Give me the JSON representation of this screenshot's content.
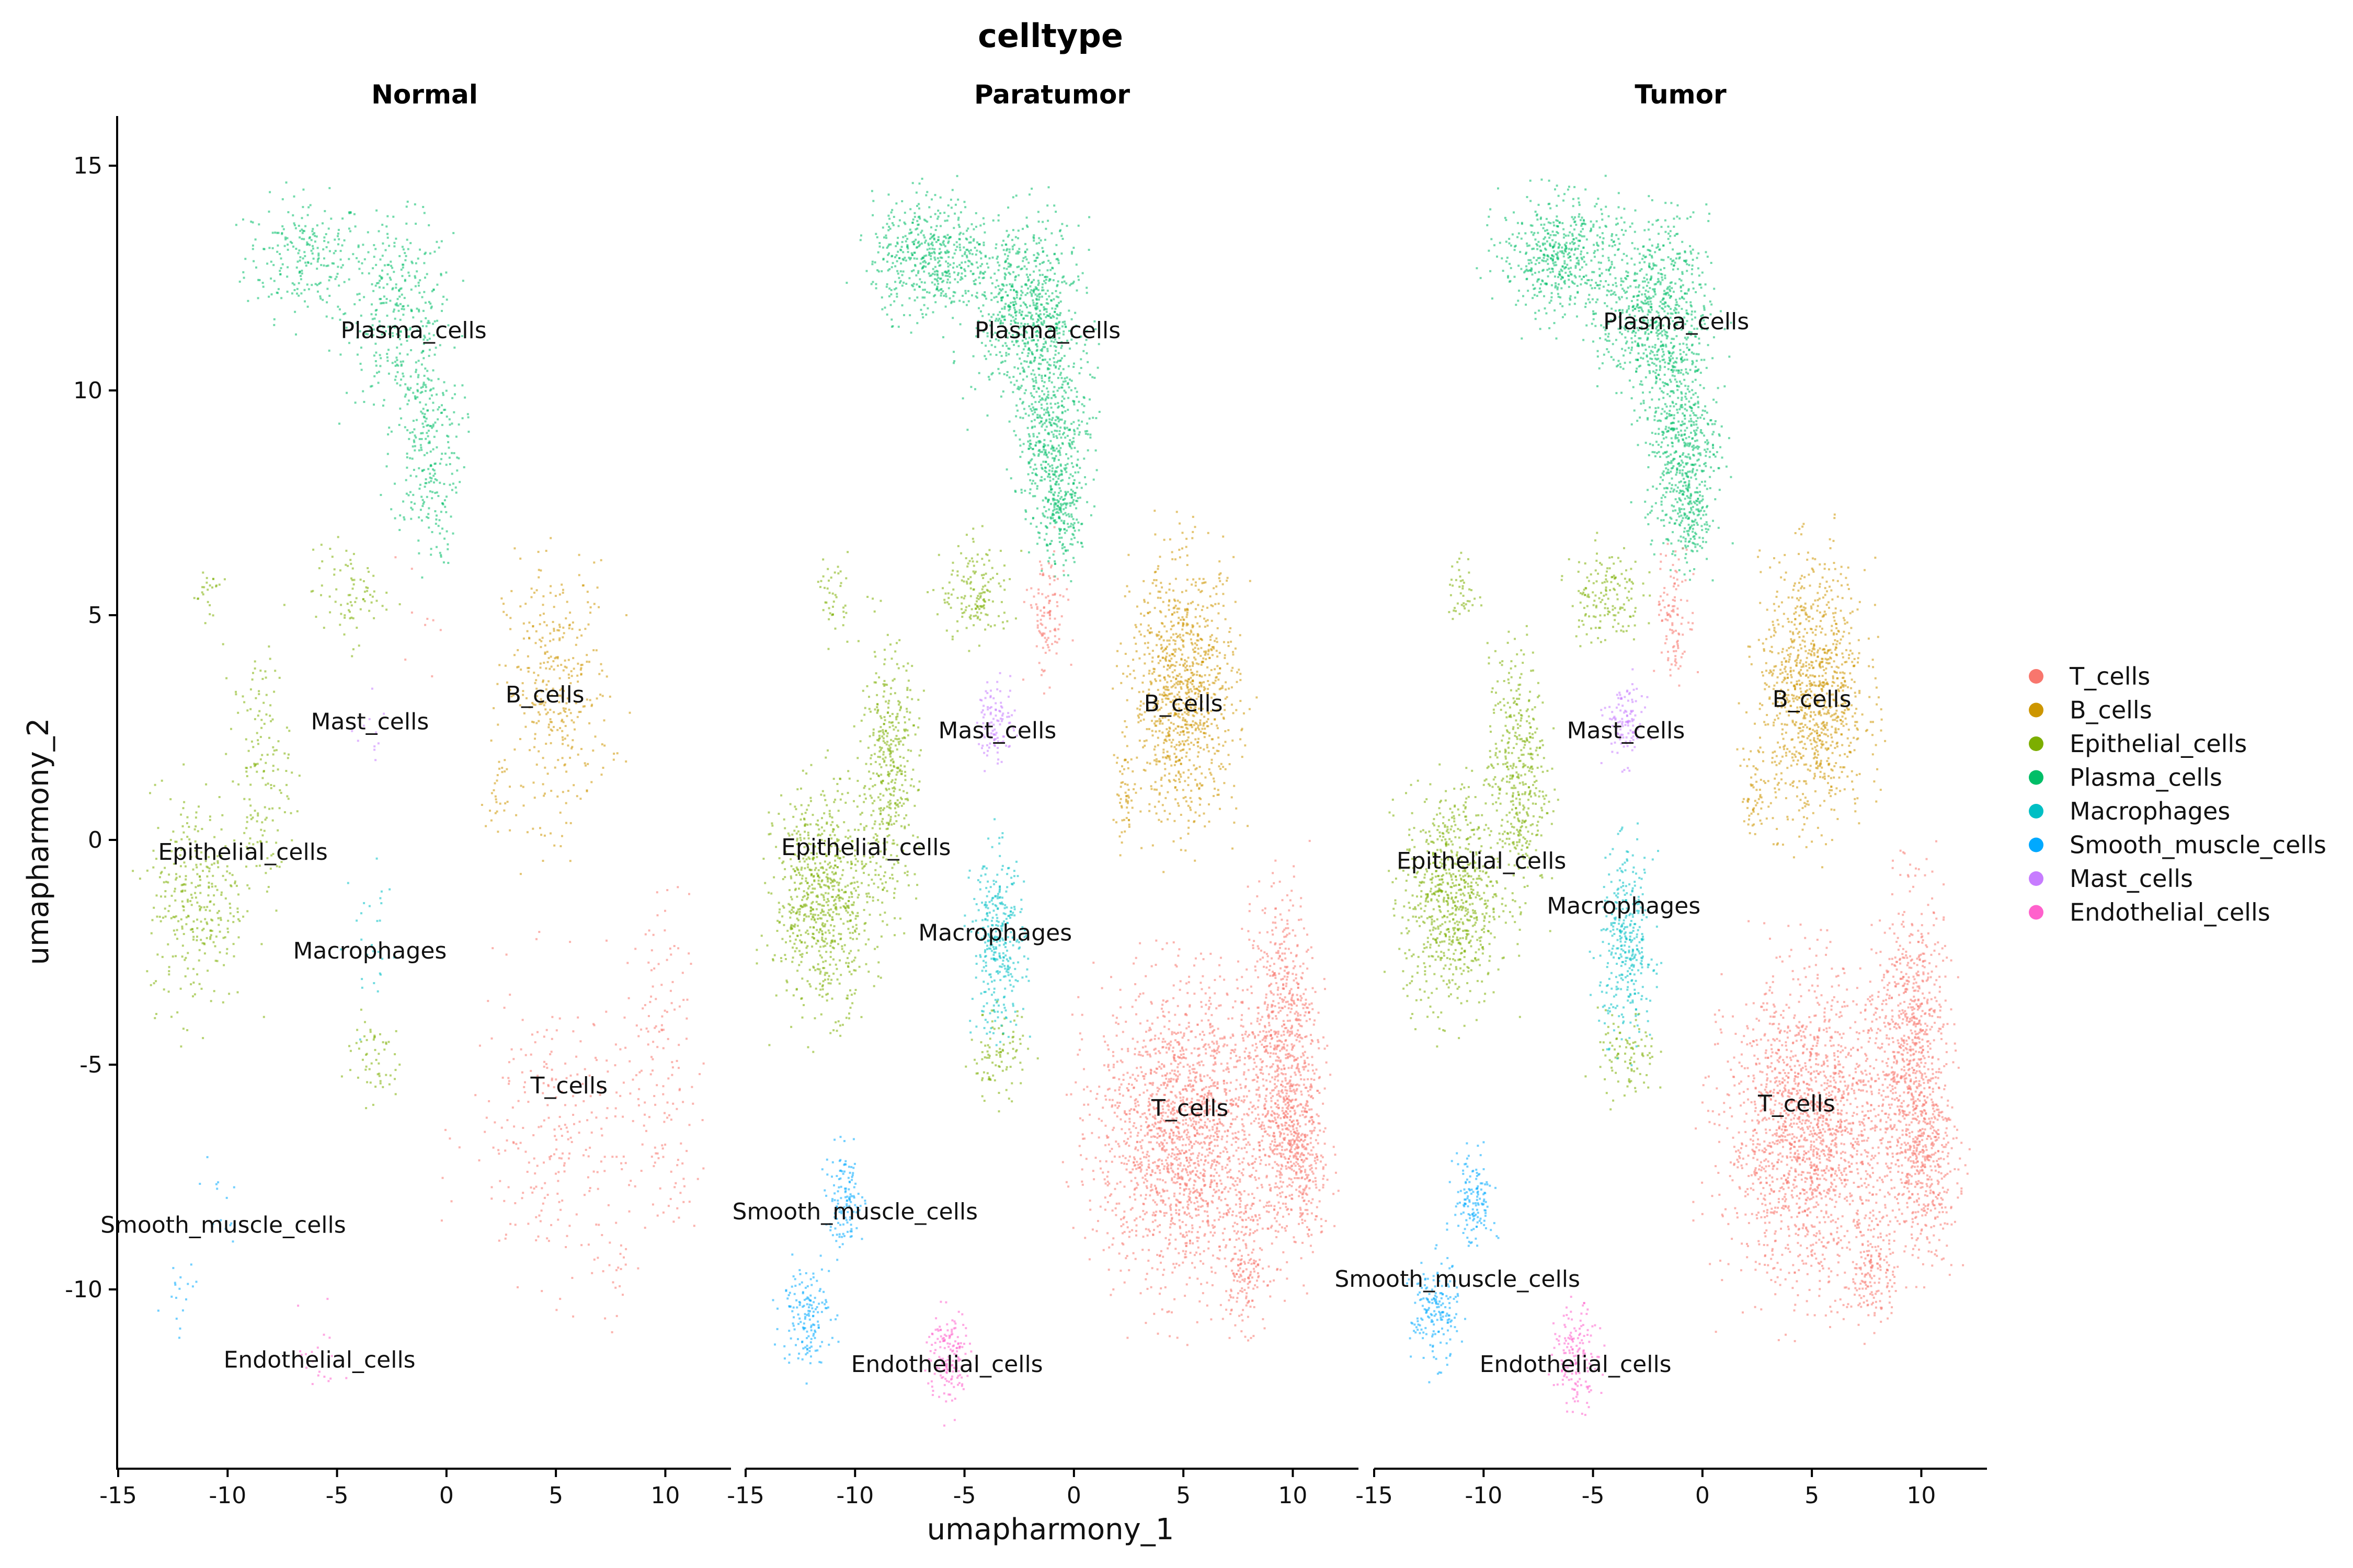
{
  "chart_data": {
    "type": "scatter",
    "title": "celltype",
    "xlabel": "umapharmony_1",
    "ylabel": "umapharmony_2",
    "xlim": [
      -15,
      13
    ],
    "ylim": [
      -14,
      16
    ],
    "x_ticks": [
      "-15",
      "-10",
      "-5",
      "0",
      "5",
      "10"
    ],
    "y_ticks": [
      "15",
      "10",
      "5",
      "0",
      "-5",
      "-10"
    ],
    "grid": false,
    "legend_position": "right",
    "panels": [
      {
        "name": "Normal",
        "labels": [
          {
            "text": "Plasma_cells",
            "x": -1.5,
            "y": 11.3
          },
          {
            "text": "B_cells",
            "x": 4.5,
            "y": 3.2
          },
          {
            "text": "Mast_cells",
            "x": -3.5,
            "y": 2.6
          },
          {
            "text": "Epithelial_cells",
            "x": -9.3,
            "y": -0.3
          },
          {
            "text": "Macrophages",
            "x": -3.5,
            "y": -2.5
          },
          {
            "text": "T_cells",
            "x": 5.6,
            "y": -5.5
          },
          {
            "text": "Smooth_muscle_cells",
            "x": -10.2,
            "y": -8.6
          },
          {
            "text": "Endothelial_cells",
            "x": -5.8,
            "y": -11.6
          }
        ]
      },
      {
        "name": "Paratumor",
        "labels": [
          {
            "text": "Plasma_cells",
            "x": -1.2,
            "y": 11.3
          },
          {
            "text": "B_cells",
            "x": 5.0,
            "y": 3.0
          },
          {
            "text": "Mast_cells",
            "x": -3.5,
            "y": 2.4
          },
          {
            "text": "Epithelial_cells",
            "x": -9.5,
            "y": -0.2
          },
          {
            "text": "Macrophages",
            "x": -3.6,
            "y": -2.1
          },
          {
            "text": "T_cells",
            "x": 5.3,
            "y": -6.0
          },
          {
            "text": "Smooth_muscle_cells",
            "x": -10.0,
            "y": -8.3
          },
          {
            "text": "Endothelial_cells",
            "x": -5.8,
            "y": -11.7
          }
        ]
      },
      {
        "name": "Tumor",
        "labels": [
          {
            "text": "Plasma_cells",
            "x": -1.2,
            "y": 11.5
          },
          {
            "text": "B_cells",
            "x": 5.0,
            "y": 3.1
          },
          {
            "text": "Mast_cells",
            "x": -3.5,
            "y": 2.4
          },
          {
            "text": "Epithelial_cells",
            "x": -10.1,
            "y": -0.5
          },
          {
            "text": "Macrophages",
            "x": -3.6,
            "y": -1.5
          },
          {
            "text": "T_cells",
            "x": 4.3,
            "y": -5.9
          },
          {
            "text": "Smooth_muscle_cells",
            "x": -11.2,
            "y": -9.8
          },
          {
            "text": "Endothelial_cells",
            "x": -5.8,
            "y": -11.7
          }
        ]
      }
    ],
    "series": [
      {
        "name": "T_cells",
        "color": "#F8766D"
      },
      {
        "name": "B_cells",
        "color": "#CD9600"
      },
      {
        "name": "Epithelial_cells",
        "color": "#7CAE00"
      },
      {
        "name": "Plasma_cells",
        "color": "#00BE67"
      },
      {
        "name": "Macrophages",
        "color": "#00BFC4"
      },
      {
        "name": "Smooth_muscle_cells",
        "color": "#00A9FF"
      },
      {
        "name": "Mast_cells",
        "color": "#C77CFF"
      },
      {
        "name": "Endothelial_cells",
        "color": "#FF61CC"
      }
    ],
    "clusters": [
      {
        "series": "Plasma_cells",
        "cx": -6.5,
        "cy": 13.0,
        "rx": 2.5,
        "ry": 1.2,
        "density": [
          0.45,
          1.0,
          1.0
        ]
      },
      {
        "series": "Plasma_cells",
        "cx": -2.2,
        "cy": 11.8,
        "rx": 2.2,
        "ry": 1.8,
        "density": [
          0.45,
          1.0,
          1.0
        ]
      },
      {
        "series": "Plasma_cells",
        "cx": -1.0,
        "cy": 9.0,
        "rx": 1.5,
        "ry": 2.0,
        "density": [
          0.45,
          1.0,
          1.0
        ]
      },
      {
        "series": "Plasma_cells",
        "cx": -0.7,
        "cy": 7.2,
        "rx": 0.9,
        "ry": 1.0,
        "density": [
          0.3,
          1.0,
          1.0
        ]
      },
      {
        "series": "B_cells",
        "cx": 5.0,
        "cy": 3.3,
        "rx": 2.2,
        "ry": 2.6,
        "density": [
          0.35,
          1.0,
          1.0
        ]
      },
      {
        "series": "B_cells",
        "cx": 2.3,
        "cy": 1.0,
        "rx": 0.5,
        "ry": 1.0,
        "density": [
          0.3,
          0.6,
          0.6
        ]
      },
      {
        "series": "T_cells",
        "cx": 5.0,
        "cy": -6.5,
        "rx": 3.6,
        "ry": 3.0,
        "density": [
          0.14,
          1.0,
          1.0
        ]
      },
      {
        "series": "T_cells",
        "cx": 9.5,
        "cy": -4.5,
        "rx": 1.4,
        "ry": 3.0,
        "density": [
          0.14,
          1.0,
          1.0
        ]
      },
      {
        "series": "T_cells",
        "cx": 10.2,
        "cy": -7.2,
        "rx": 1.3,
        "ry": 1.8,
        "density": [
          0.1,
          0.9,
          0.9
        ]
      },
      {
        "series": "T_cells",
        "cx": 7.8,
        "cy": -9.5,
        "rx": 0.9,
        "ry": 1.2,
        "density": [
          0.1,
          0.8,
          0.8
        ]
      },
      {
        "series": "T_cells",
        "cx": -1.3,
        "cy": 5.0,
        "rx": 0.8,
        "ry": 1.3,
        "density": [
          0.05,
          0.6,
          0.6
        ]
      },
      {
        "series": "Epithelial_cells",
        "cx": -11.5,
        "cy": -1.3,
        "rx": 2.0,
        "ry": 2.2,
        "density": [
          0.4,
          1.0,
          1.0
        ]
      },
      {
        "series": "Epithelial_cells",
        "cx": -8.5,
        "cy": 1.5,
        "rx": 1.2,
        "ry": 2.5,
        "density": [
          0.3,
          0.8,
          0.8
        ]
      },
      {
        "series": "Epithelial_cells",
        "cx": -4.5,
        "cy": 5.5,
        "rx": 1.5,
        "ry": 1.0,
        "density": [
          0.3,
          0.6,
          0.6
        ]
      },
      {
        "series": "Epithelial_cells",
        "cx": -11.0,
        "cy": 5.5,
        "rx": 0.6,
        "ry": 0.8,
        "density": [
          0.3,
          0.5,
          0.5
        ]
      },
      {
        "series": "Epithelial_cells",
        "cx": -3.5,
        "cy": -4.8,
        "rx": 1.2,
        "ry": 0.9,
        "density": [
          0.3,
          0.5,
          0.5
        ]
      },
      {
        "series": "Macrophages",
        "cx": -3.5,
        "cy": -2.3,
        "rx": 1.1,
        "ry": 1.8,
        "density": [
          0.08,
          1.0,
          1.0
        ]
      },
      {
        "series": "Mast_cells",
        "cx": -3.6,
        "cy": 2.6,
        "rx": 0.8,
        "ry": 0.8,
        "density": [
          0.1,
          1.0,
          1.0
        ]
      },
      {
        "series": "Smooth_muscle_cells",
        "cx": -10.5,
        "cy": -8.0,
        "rx": 0.8,
        "ry": 1.0,
        "density": [
          0.1,
          0.9,
          1.0
        ]
      },
      {
        "series": "Smooth_muscle_cells",
        "cx": -12.3,
        "cy": -10.5,
        "rx": 1.0,
        "ry": 1.0,
        "density": [
          0.1,
          0.9,
          1.0
        ]
      },
      {
        "series": "Endothelial_cells",
        "cx": -5.8,
        "cy": -11.5,
        "rx": 0.9,
        "ry": 1.0,
        "density": [
          0.12,
          1.0,
          1.0
        ]
      }
    ]
  }
}
